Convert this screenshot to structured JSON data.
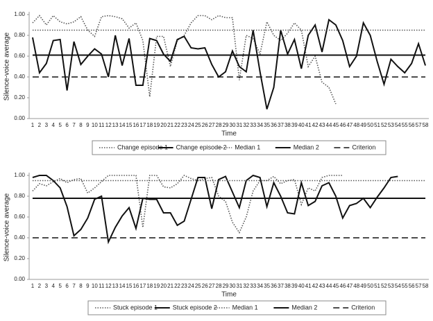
{
  "chart_data": [
    {
      "type": "line",
      "x_label": "Time",
      "y_label": "Silence-voice average",
      "categories": [
        1,
        2,
        3,
        4,
        5,
        6,
        7,
        8,
        9,
        10,
        11,
        12,
        13,
        14,
        15,
        16,
        17,
        18,
        19,
        20,
        21,
        22,
        23,
        24,
        25,
        26,
        27,
        28,
        29,
        30,
        31,
        32,
        33,
        34,
        35,
        36,
        37,
        38,
        39,
        40,
        41,
        42,
        43,
        44,
        45,
        46,
        47,
        48,
        49,
        50,
        51,
        52,
        53,
        54,
        55,
        56,
        57,
        58
      ],
      "ylim": [
        0,
        1
      ],
      "yticks": [
        {
          "value": 0,
          "label": "0.00"
        },
        {
          "value": 0.2,
          "label": "0.20"
        },
        {
          "value": 0.4,
          "label": "0.40"
        },
        {
          "value": 0.6,
          "label": "0.60"
        },
        {
          "value": 0.8,
          "label": "0.80"
        },
        {
          "value": 1,
          "label": "1.00"
        }
      ],
      "series": [
        {
          "name": "Change episode 1",
          "color": "#555555",
          "style": "dotted",
          "values": [
            0.92,
            0.99,
            0.9,
            0.99,
            0.93,
            0.91,
            0.93,
            0.98,
            0.85,
            0.79,
            0.98,
            0.99,
            0.98,
            0.96,
            0.87,
            0.92,
            0.75,
            0.21,
            0.79,
            0.79,
            0.5,
            0.75,
            0.8,
            0.92,
            0.99,
            0.99,
            0.95,
            0.99,
            0.97,
            0.97,
            0.37,
            0.8,
            0.77,
            0.62,
            0.93,
            0.8,
            0.75,
            0.82,
            0.92,
            0.85,
            0.5,
            0.6,
            0.35,
            0.3,
            0.14,
            null,
            null,
            null,
            null,
            null,
            null,
            null,
            null,
            null,
            null,
            null,
            null,
            null
          ]
        },
        {
          "name": "Change episode 2",
          "color": "#111111",
          "style": "solid",
          "values": [
            0.78,
            0.44,
            0.53,
            0.75,
            0.76,
            0.27,
            0.74,
            0.52,
            0.6,
            0.67,
            0.62,
            0.4,
            0.8,
            0.51,
            0.77,
            0.32,
            0.32,
            0.77,
            0.75,
            0.62,
            0.55,
            0.76,
            0.79,
            0.68,
            0.67,
            0.68,
            0.52,
            0.4,
            0.45,
            0.65,
            0.5,
            0.45,
            0.85,
            0.45,
            0.09,
            0.3,
            0.85,
            0.62,
            0.76,
            0.48,
            0.8,
            0.9,
            0.64,
            0.95,
            0.9,
            0.75,
            0.5,
            0.6,
            0.92,
            0.8,
            0.55,
            0.33,
            0.57,
            0.5,
            0.44,
            0.53,
            0.72,
            0.51
          ]
        },
        {
          "name": "Median 1",
          "color": "#555555",
          "style": "dotted",
          "value": 0.85
        },
        {
          "name": "Median 2",
          "color": "#111111",
          "style": "solid",
          "value": 0.61
        },
        {
          "name": "Criterion",
          "color": "#111111",
          "style": "dashed",
          "value": 0.4
        }
      ]
    },
    {
      "type": "line",
      "x_label": "Time",
      "y_label": "Silence-voice average",
      "categories": [
        1,
        2,
        3,
        4,
        5,
        6,
        7,
        8,
        9,
        10,
        11,
        12,
        13,
        14,
        15,
        16,
        17,
        18,
        19,
        20,
        21,
        22,
        23,
        24,
        25,
        26,
        27,
        28,
        29,
        30,
        31,
        32,
        33,
        34,
        35,
        36,
        37,
        38,
        39,
        40,
        41,
        42,
        43,
        44,
        45,
        46,
        47,
        48,
        49,
        50,
        51,
        52,
        53,
        54,
        55,
        56,
        57,
        58
      ],
      "ylim": [
        0,
        1
      ],
      "yticks": [
        {
          "value": 0,
          "label": "0.00"
        },
        {
          "value": 0.2,
          "label": "0.20"
        },
        {
          "value": 0.4,
          "label": "0.40"
        },
        {
          "value": 0.6,
          "label": "0.60"
        },
        {
          "value": 0.8,
          "label": "0.80"
        },
        {
          "value": 1,
          "label": "1.00"
        }
      ],
      "series": [
        {
          "name": "Stuck episode 1",
          "color": "#555555",
          "style": "dotted",
          "values": [
            0.85,
            0.92,
            0.9,
            0.94,
            0.97,
            0.93,
            0.96,
            0.97,
            0.83,
            0.88,
            0.94,
            1,
            1,
            1,
            1,
            1,
            0.5,
            1,
            1,
            0.89,
            0.88,
            0.92,
            1,
            0.97,
            0.95,
            0.97,
            0.98,
            0.8,
            0.75,
            0.55,
            0.45,
            0.6,
            0.85,
            0.95,
            0.95,
            0.99,
            0.92,
            0.95,
            0.96,
            0.72,
            0.88,
            0.85,
            0.98,
            1,
            1,
            1,
            null,
            null,
            null,
            null,
            null,
            null,
            null,
            null,
            null,
            null,
            null,
            null
          ]
        },
        {
          "name": "Stuck episode 2",
          "color": "#111111",
          "style": "solid",
          "values": [
            0.98,
            1,
            1,
            0.95,
            0.88,
            0.7,
            0.42,
            0.48,
            0.59,
            0.77,
            0.8,
            0.36,
            0.5,
            0.61,
            0.69,
            0.49,
            0.78,
            0.77,
            0.77,
            0.64,
            0.64,
            0.52,
            0.56,
            0.77,
            0.98,
            0.98,
            0.68,
            0.96,
            0.99,
            0.84,
            0.69,
            0.95,
            1,
            0.98,
            0.7,
            0.93,
            0.8,
            0.64,
            0.63,
            0.93,
            0.71,
            0.75,
            0.9,
            0.93,
            0.8,
            0.59,
            0.71,
            0.73,
            0.78,
            0.69,
            0.79,
            0.88,
            0.98,
            0.99,
            null,
            null,
            null,
            null
          ]
        },
        {
          "name": "Median 1",
          "color": "#555555",
          "style": "dotted",
          "value": 0.95
        },
        {
          "name": "Median 2",
          "color": "#111111",
          "style": "solid",
          "value": 0.78
        },
        {
          "name": "Criterion",
          "color": "#111111",
          "style": "dashed",
          "value": 0.4
        }
      ]
    }
  ]
}
